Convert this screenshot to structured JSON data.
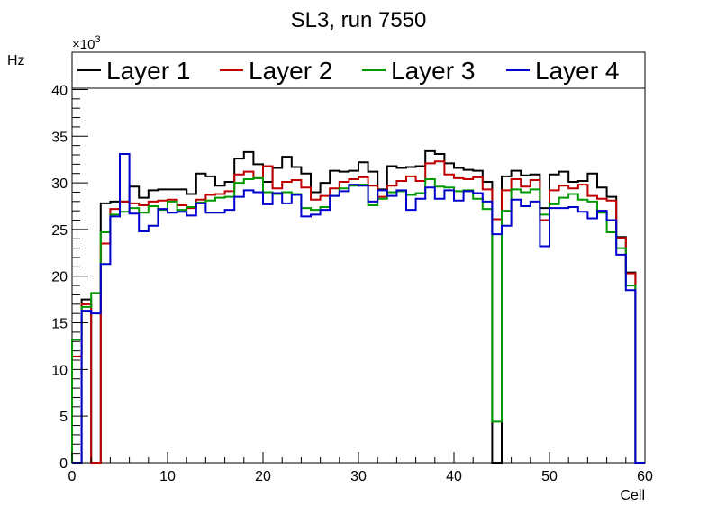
{
  "chart_data": {
    "type": "line",
    "style": "step-histogram",
    "title": "SL3, run 7550",
    "xlabel": "Cell",
    "ylabel": "Hz",
    "y_exponent_label": "×10",
    "y_exponent_value": "3",
    "xlim": [
      0,
      60
    ],
    "ylim": [
      0,
      44
    ],
    "x_ticks": [
      0,
      10,
      20,
      30,
      40,
      50,
      60
    ],
    "y_ticks": [
      0,
      5,
      10,
      15,
      20,
      25,
      30,
      35,
      40
    ],
    "x_tick_labels": [
      "0",
      "10",
      "20",
      "30",
      "40",
      "50",
      "60"
    ],
    "y_tick_labels": [
      "0",
      "5",
      "10",
      "15",
      "20",
      "25",
      "30",
      "35",
      "40"
    ],
    "bin_edges_start": 0,
    "bin_width": 1,
    "legend_position": "top",
    "series": [
      {
        "name": "Layer 1",
        "color": "#000000",
        "values": [
          0,
          17.5,
          0,
          27.8,
          28.0,
          28.0,
          29.6,
          28.4,
          29.2,
          29.3,
          29.3,
          29.3,
          28.8,
          31.0,
          30.7,
          29.7,
          30.1,
          32.6,
          33.3,
          32.0,
          30.1,
          31.6,
          32.8,
          31.7,
          31.0,
          29.0,
          30.0,
          31.3,
          31.2,
          31.3,
          32.2,
          31.2,
          29.3,
          31.8,
          31.6,
          31.7,
          31.8,
          33.4,
          33.1,
          32.1,
          31.6,
          31.4,
          31.3,
          30.1,
          0,
          30.7,
          31.3,
          30.8,
          30.9,
          27.3,
          30.9,
          31.2,
          30.1,
          30.2,
          31.0,
          29.5,
          28.5,
          24.2,
          20.4,
          0
        ]
      },
      {
        "name": "Layer 2",
        "color": "#c00000",
        "values": [
          11.4,
          17.0,
          0,
          23.5,
          27.2,
          28.0,
          27.8,
          27.6,
          28.0,
          28.1,
          28.2,
          27.6,
          27.3,
          28.2,
          28.7,
          28.8,
          29.1,
          30.9,
          31.2,
          30.5,
          31.8,
          29.4,
          30.1,
          30.3,
          29.5,
          28.2,
          28.6,
          29.4,
          30.1,
          30.4,
          30.6,
          29.7,
          28.5,
          29.7,
          30.2,
          30.7,
          30.2,
          32.1,
          32.3,
          30.9,
          30.5,
          30.4,
          30.6,
          29.3,
          26.1,
          29.2,
          30.4,
          29.6,
          30.3,
          26.0,
          29.2,
          29.7,
          29.4,
          29.8,
          28.6,
          28.3,
          28.1,
          24.1,
          20.3,
          0
        ]
      },
      {
        "name": "Layer 3",
        "color": "#009900",
        "values": [
          13.2,
          16.7,
          18.2,
          24.7,
          26.6,
          26.9,
          27.3,
          26.8,
          27.5,
          27.1,
          28.0,
          27.1,
          27.4,
          27.9,
          28.1,
          28.4,
          28.5,
          30.0,
          30.4,
          30.5,
          29.0,
          28.8,
          29.0,
          28.8,
          27.3,
          27.1,
          27.4,
          28.6,
          29.4,
          29.7,
          29.8,
          27.6,
          28.3,
          29.0,
          29.1,
          28.7,
          28.9,
          30.4,
          29.6,
          29.5,
          29.1,
          29.2,
          28.3,
          27.2,
          4.4,
          27.0,
          29.3,
          29.0,
          29.3,
          26.6,
          27.7,
          28.4,
          28.8,
          28.2,
          28.0,
          26.8,
          24.7,
          23.0,
          19.0,
          0
        ]
      },
      {
        "name": "Layer 4",
        "color": "#0000cc",
        "values": [
          0,
          16.3,
          16.0,
          21.3,
          26.4,
          33.1,
          26.7,
          24.8,
          25.4,
          27.2,
          26.8,
          26.9,
          26.5,
          27.8,
          26.8,
          26.8,
          27.1,
          28.5,
          29.2,
          29.0,
          27.7,
          28.9,
          27.8,
          28.7,
          26.4,
          26.6,
          27.1,
          28.6,
          29.1,
          29.8,
          29.7,
          28.0,
          29.2,
          28.6,
          29.2,
          27.1,
          28.3,
          29.5,
          28.3,
          29.2,
          28.1,
          29.1,
          28.9,
          28.0,
          24.5,
          25.4,
          28.2,
          27.5,
          28.0,
          23.2,
          27.3,
          27.3,
          27.4,
          26.9,
          26.2,
          27.0,
          26.0,
          22.3,
          18.5,
          0
        ]
      }
    ]
  }
}
